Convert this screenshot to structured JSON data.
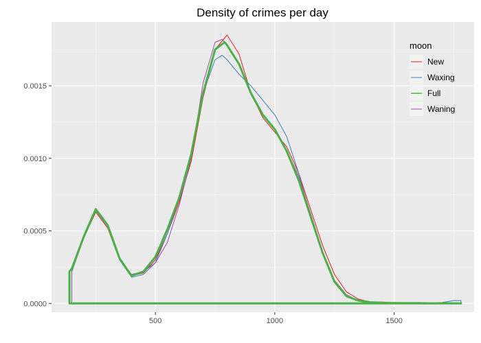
{
  "chart_data": {
    "type": "line",
    "title": "Density of crimes per day",
    "xlabel": "",
    "ylabel": "",
    "xlim": [
      65,
      1835
    ],
    "ylim": [
      -6e-05,
      0.00194
    ],
    "x_ticks": [
      500,
      1000,
      1500
    ],
    "x_tick_labels": [
      "500",
      "1000",
      "1500"
    ],
    "y_ticks": [
      0.0,
      0.0005,
      0.001,
      0.0015
    ],
    "y_tick_labels": [
      "0.0000",
      "0.0005",
      "0.0010",
      "0.0015"
    ],
    "x_minor_ticks": [
      250,
      750,
      1250,
      1750
    ],
    "y_minor_ticks": [
      0.00025,
      0.00075,
      0.00125,
      0.00175
    ],
    "grid": true,
    "legend": {
      "title": "moon",
      "position": "top-right"
    },
    "series": [
      {
        "name": "New",
        "color": "#E41A1C",
        "width": 1,
        "x": [
          150,
          200,
          250,
          300,
          350,
          400,
          450,
          500,
          550,
          600,
          650,
          700,
          750,
          800,
          850,
          900,
          950,
          1000,
          1050,
          1100,
          1150,
          1200,
          1250,
          1300,
          1350,
          1400,
          1450,
          1500,
          1550,
          1600,
          1650,
          1700,
          1750,
          1780
        ],
        "y": [
          0.00022,
          0.00045,
          0.00063,
          0.00052,
          0.0003,
          0.00019,
          0.00021,
          0.0003,
          0.00048,
          0.0007,
          0.00098,
          0.00142,
          0.00175,
          0.00185,
          0.00172,
          0.00145,
          0.00128,
          0.00118,
          0.00108,
          0.0009,
          0.00065,
          0.0004,
          0.0002,
          8e-05,
          3e-05,
          1e-05,
          1e-05,
          5e-06,
          3e-06,
          2e-06,
          1e-06,
          1e-06,
          1e-06,
          5e-07
        ]
      },
      {
        "name": "Waxing",
        "color": "#377EB8",
        "width": 1,
        "x": [
          150,
          200,
          250,
          300,
          350,
          400,
          450,
          500,
          550,
          600,
          650,
          700,
          750,
          780,
          800,
          850,
          900,
          950,
          1000,
          1050,
          1100,
          1150,
          1200,
          1250,
          1300,
          1350,
          1400,
          1450,
          1500,
          1550,
          1600,
          1650,
          1700,
          1750,
          1780
        ],
        "y": [
          0.00022,
          0.00045,
          0.00064,
          0.00053,
          0.0003,
          0.00018,
          0.0002,
          0.00028,
          0.00048,
          0.00072,
          0.00102,
          0.00145,
          0.00168,
          0.00171,
          0.00168,
          0.00158,
          0.0015,
          0.0014,
          0.0013,
          0.00115,
          0.0009,
          0.0006,
          0.00035,
          0.00015,
          5e-05,
          2e-05,
          8e-06,
          4e-06,
          3e-06,
          2e-06,
          2e-06,
          3e-06,
          6e-06,
          2e-05,
          2e-05
        ]
      },
      {
        "name": "Full",
        "color": "#4DAF4A",
        "width": 3,
        "x": [
          140,
          150,
          200,
          250,
          300,
          350,
          400,
          450,
          500,
          550,
          600,
          650,
          700,
          750,
          790,
          800,
          850,
          900,
          950,
          1000,
          1050,
          1100,
          1150,
          1200,
          1250,
          1300,
          1350,
          1400,
          1450,
          1500,
          1550,
          1600,
          1650,
          1700,
          1750,
          1780
        ],
        "y": [
          0.00022,
          0.00024,
          0.00046,
          0.00065,
          0.00054,
          0.00031,
          0.00019,
          0.00022,
          0.00032,
          0.00051,
          0.00073,
          0.00103,
          0.00145,
          0.00175,
          0.0018,
          0.00178,
          0.00165,
          0.00145,
          0.0013,
          0.0012,
          0.00105,
          0.00085,
          0.0006,
          0.00035,
          0.00015,
          5e-05,
          2e-05,
          8e-06,
          4e-06,
          3e-06,
          2e-06,
          2e-06,
          1e-06,
          1e-06,
          1e-06,
          5e-07
        ]
      },
      {
        "name": "Waning",
        "color": "#984EA3",
        "width": 1,
        "x": [
          150,
          200,
          250,
          300,
          350,
          400,
          450,
          500,
          550,
          600,
          650,
          700,
          750,
          780,
          800,
          850,
          900,
          950,
          1000,
          1050,
          1100,
          1150,
          1200,
          1250,
          1300,
          1350,
          1400,
          1450,
          1500,
          1550,
          1600,
          1650,
          1700,
          1750,
          1780
        ],
        "y": [
          0.00022,
          0.00046,
          0.00065,
          0.00054,
          0.00031,
          0.0002,
          0.00022,
          0.00028,
          0.00042,
          0.00068,
          0.001,
          0.00152,
          0.0018,
          0.00182,
          0.00178,
          0.00165,
          0.00145,
          0.0013,
          0.0012,
          0.00105,
          0.00088,
          0.00062,
          0.00036,
          0.00016,
          6e-05,
          2e-05,
          8e-06,
          4e-06,
          3e-06,
          2e-06,
          2e-06,
          1e-06,
          1e-06,
          1e-06,
          5e-07
        ]
      }
    ]
  }
}
